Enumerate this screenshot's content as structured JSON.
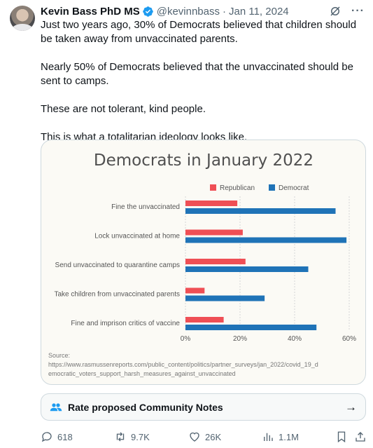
{
  "tweet": {
    "author_name": "Kevin Bass PhD MS",
    "handle": "@kevinnbass",
    "separator": "·",
    "date": "Jan 11, 2024",
    "text": [
      "Just two years ago, 30% of Democrats believed that children should be taken away from unvaccinated parents.",
      "Nearly 50% of Democrats believed that the unvaccinated should be sent to camps.",
      "These are not tolerant, kind people.",
      "This is what a totalitarian ideology looks like."
    ]
  },
  "community_notes": {
    "label": "Rate proposed Community Notes",
    "arrow": "→"
  },
  "actions": {
    "replies": "618",
    "reposts": "9.7K",
    "likes": "26K",
    "views": "1.1M"
  },
  "colors": {
    "republican": "#ef4f55",
    "democrat": "#1f73b7",
    "verified": "#1d9bf0"
  },
  "chart_data": {
    "type": "bar",
    "title": "Democrats in January 2022",
    "categories": [
      "Fine the unvaccinated",
      "Lock unvaccinated at home",
      "Send unvaccinated to quarantine camps",
      "Take children from unvaccinated parents",
      "Fine and imprison critics of vaccine"
    ],
    "series": [
      {
        "name": "Republican",
        "values": [
          19,
          21,
          22,
          7,
          14
        ]
      },
      {
        "name": "Democrat",
        "values": [
          55,
          59,
          45,
          29,
          48
        ]
      }
    ],
    "xlim": [
      0,
      60
    ],
    "xticks": [
      "0%",
      "20%",
      "40%",
      "60%"
    ],
    "legend": "top-center",
    "grid": true,
    "source_label": "Source:",
    "source_url": "https://www.rasmussenreports.com/public_content/politics/partner_surveys/jan_2022/covid_19_democratic_voters_support_harsh_measures_against_unvaccinated"
  }
}
